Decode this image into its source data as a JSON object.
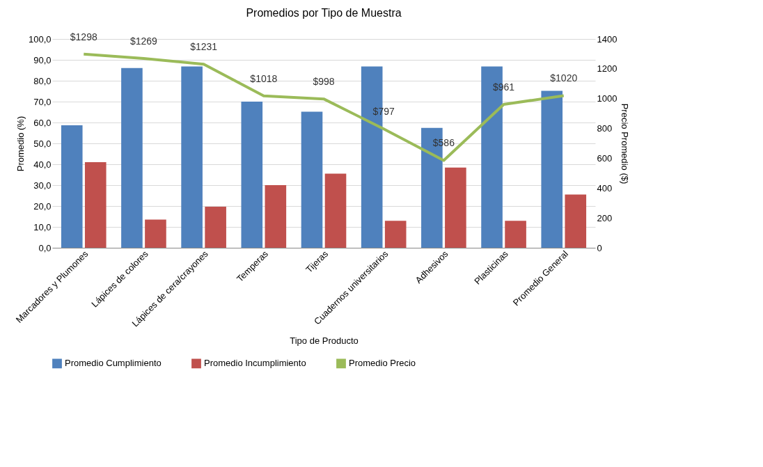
{
  "chart_data": {
    "type": "bar",
    "title": "Promedios por Tipo de Muestra",
    "xlabel": "Tipo de Producto",
    "ylabel": "Promedio (%)",
    "y2label": "Precio Promedio ($)",
    "categories": [
      "Marcadores y Plumones",
      "Lápices de colores",
      "Lápices de cera/crayones",
      "Temperas",
      "Tijeras",
      "Cuadernos universitarios",
      "Adhesivos",
      "Plasticinas",
      "Promedio General"
    ],
    "series": [
      {
        "name": "Promedio Cumplimiento",
        "color": "#4f81bd",
        "values": [
          58.7,
          86.1,
          86.8,
          70.0,
          65.2,
          86.8,
          57.4,
          86.8,
          75.2
        ]
      },
      {
        "name": "Promedio Incumplimiento",
        "color": "#c0504d",
        "values": [
          41.0,
          13.5,
          19.7,
          30.0,
          35.5,
          12.9,
          38.4,
          12.9,
          25.5
        ]
      },
      {
        "name": "Promedio Precio",
        "type": "line",
        "axis": "y2",
        "color": "#9bbb59",
        "values": [
          1298,
          1269,
          1231,
          1018,
          998,
          797,
          586,
          961,
          1020
        ],
        "value_labels": [
          "$1298",
          "$1269",
          "$1231",
          "$1018",
          "$998",
          "$797",
          "$586",
          "$961",
          "$1020"
        ]
      }
    ],
    "ylim": [
      0,
      100
    ],
    "yticks": [
      {
        "value": 0,
        "label": "0,0"
      },
      {
        "value": 10,
        "label": "10,0"
      },
      {
        "value": 20,
        "label": "20,0"
      },
      {
        "value": 30,
        "label": "30,0"
      },
      {
        "value": 40,
        "label": "40,0"
      },
      {
        "value": 50,
        "label": "50,0"
      },
      {
        "value": 60,
        "label": "60,0"
      },
      {
        "value": 70,
        "label": "70,0"
      },
      {
        "value": 80,
        "label": "80,0"
      },
      {
        "value": 90,
        "label": "90,0"
      },
      {
        "value": 100,
        "label": "100,0"
      }
    ],
    "y2lim": [
      0,
      1400
    ],
    "y2ticks": [
      0,
      200,
      400,
      600,
      800,
      1000,
      1200,
      1400
    ],
    "grid": "y",
    "legend": "bottom"
  }
}
